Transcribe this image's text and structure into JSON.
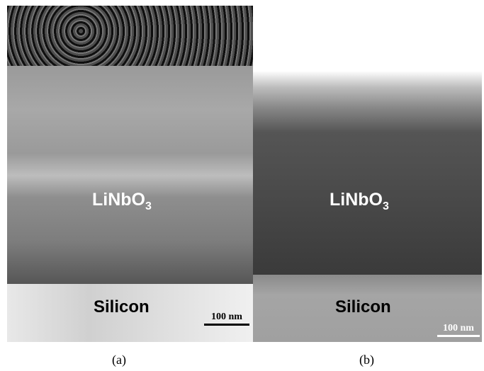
{
  "panels": [
    {
      "film_label": {
        "text": "LiNbO",
        "sub": "3"
      },
      "substrate_label": "Silicon",
      "scale_bar": "100 nm",
      "caption": "(a)"
    },
    {
      "film_label": {
        "text": "LiNbO",
        "sub": "3"
      },
      "substrate_label": "Silicon",
      "scale_bar": "100 nm",
      "caption": "(b)"
    }
  ]
}
